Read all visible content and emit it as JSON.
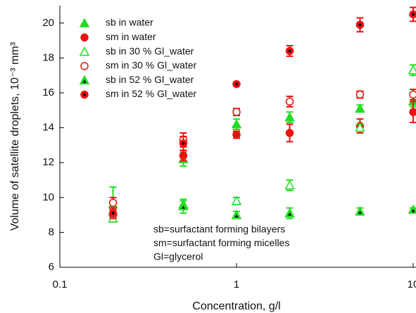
{
  "chart_data": {
    "type": "scatter",
    "x_label": "Concentration, g/l",
    "y_label": "Volume of satellite droplets, 10⁻³ mm³",
    "x": [
      0.2,
      0.5,
      1,
      2,
      5,
      10
    ],
    "xlim": [
      0.1,
      10
    ],
    "xticks": [
      0.1,
      1,
      10
    ],
    "x_log": true,
    "ylim": [
      6,
      21
    ],
    "yticks": [
      6,
      8,
      10,
      12,
      14,
      16,
      18,
      20
    ],
    "legend": "top-left",
    "annotations": [
      "sb=surfactant  forming bilayers",
      "sm=surfactant  forming micelles",
      "Gl=glycerol"
    ],
    "series": [
      {
        "name": "sb in water",
        "color": "#22dd22",
        "marker": "triangle",
        "filled": true,
        "inner_color": null,
        "values": [
          9.6,
          12.2,
          14.2,
          14.6,
          15.1,
          15.5
        ],
        "errors": [
          1.0,
          0.4,
          0.3,
          0.3,
          0.2,
          0.3
        ]
      },
      {
        "name": "sm in water",
        "color": "#ee1111",
        "marker": "circle",
        "filled": true,
        "inner_color": null,
        "values": [
          9.0,
          12.4,
          13.6,
          13.7,
          14.1,
          14.9
        ],
        "errors": [
          0.3,
          0.3,
          0.2,
          0.5,
          0.4,
          0.6
        ]
      },
      {
        "name": "sb in 30 % Gl_water",
        "color": "#22dd22",
        "marker": "triangle",
        "filled": false,
        "inner_color": null,
        "values": [
          8.8,
          9.6,
          9.8,
          10.7,
          14.0,
          17.3
        ],
        "errors": [
          0.2,
          0.2,
          0.2,
          0.3,
          0.2,
          0.3
        ]
      },
      {
        "name": "sm in 30 % Gl_water",
        "color": "#ee1111",
        "marker": "circle",
        "filled": false,
        "inner_color": null,
        "values": [
          9.7,
          13.3,
          14.9,
          15.5,
          15.9,
          15.9
        ],
        "errors": [
          0.3,
          0.4,
          0.2,
          0.3,
          0.2,
          0.3
        ]
      },
      {
        "name": "sb in 52 % Gl_water",
        "color": "#22dd22",
        "marker": "triangle",
        "filled": true,
        "inner_color": "#000000",
        "values": [
          9.2,
          9.5,
          9.0,
          9.1,
          9.2,
          9.3
        ],
        "errors": [
          0.2,
          0.4,
          0.2,
          0.3,
          0.2,
          0.1
        ]
      },
      {
        "name": "sm in 52 % Gl_water",
        "color": "#ee1111",
        "marker": "circle",
        "filled": true,
        "inner_color": "#000000",
        "values": [
          9.1,
          13.1,
          16.5,
          18.4,
          19.9,
          20.5
        ],
        "errors": [
          0.3,
          0.4,
          0.1,
          0.3,
          0.4,
          0.4
        ]
      }
    ]
  }
}
